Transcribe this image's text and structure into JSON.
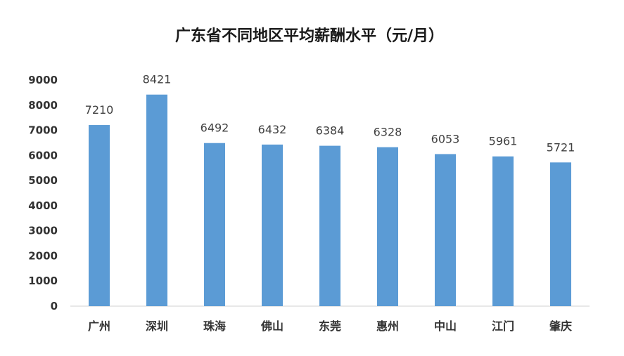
{
  "chart_data": {
    "type": "bar",
    "title": "广东省不同地区平均薪酬水平（元/月）",
    "categories": [
      "广州",
      "深圳",
      "珠海",
      "佛山",
      "东莞",
      "惠州",
      "中山",
      "江门",
      "肇庆"
    ],
    "values": [
      7210,
      8421,
      6492,
      6432,
      6384,
      6328,
      6053,
      5961,
      5721
    ],
    "y_ticks": [
      "0",
      "1000",
      "2000",
      "3000",
      "4000",
      "5000",
      "6000",
      "7000",
      "8000",
      "9000"
    ],
    "ylim": [
      0,
      9000
    ],
    "xlabel": "",
    "ylabel": "",
    "grid": false,
    "legend": "none",
    "bar_color": "#5b9bd5"
  }
}
